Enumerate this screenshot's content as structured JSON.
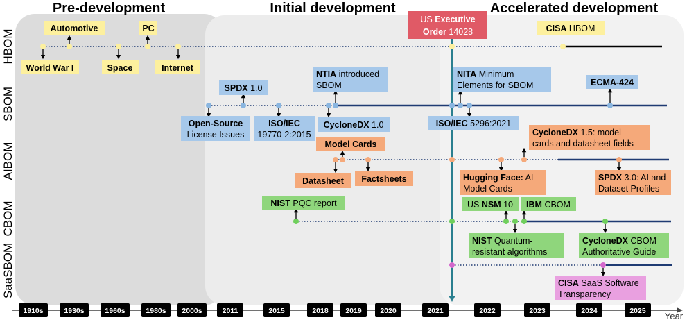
{
  "phases": {
    "pre": "Pre-development",
    "initial": "Initial development",
    "accelerated": "Accelerated development"
  },
  "rows": {
    "hbom": "HBOM",
    "sbom": "SBOM",
    "aibom": "AIBOM",
    "cbom": "CBOM",
    "saasbom": "SaaSBOM"
  },
  "axis": {
    "label": "Year",
    "ticks": [
      "1910s",
      "1930s",
      "1960s",
      "1980s",
      "2000s",
      "2011",
      "2015",
      "2018",
      "2019",
      "2020",
      "2021",
      "2022",
      "2023",
      "2024",
      "2025"
    ]
  },
  "colors": {
    "hbom": "#fdf09e",
    "sbom": "#a6c8ea",
    "sbom_dot": "#8ab6e0",
    "aibom": "#f5a97a",
    "cbom": "#8fd67c",
    "cbom_dot": "#6fcf5c",
    "saasbom": "#e9a0e0",
    "saasbom_dot": "#d468cc",
    "exec_order": "#e05a66",
    "line": "#1f3b73",
    "vertical": "#2a7f8f"
  },
  "events": {
    "exec_order": {
      "l1a": "US ",
      "l1b": "Executive",
      "l2a": "Order",
      "l2b": " 14028"
    },
    "hbom": {
      "automotive": "Automotive",
      "pc": "PC",
      "world_war": "World War I",
      "space": "Space",
      "internet": "Internet",
      "cisa_b": "CISA",
      "cisa_r": " HBOM"
    },
    "sbom": {
      "spdx_b": "SPDX",
      "spdx_r": " 1.0",
      "ntia_b": "NTIA",
      "ntia_r1": " introduced",
      "ntia_r2": "SBOM",
      "nita_b": "NITA",
      "nita_r1": " Minimum",
      "nita_r2": "Elements for SBOM",
      "ecma": "ECMA-424",
      "os_b": "Open-Source",
      "os_r": "License Issues",
      "iso1_b": "ISO/IEC",
      "iso1_r": "19770-2:2015",
      "cdx_b": "CycloneDX",
      "cdx_r": " 1.0",
      "iso2_b": "ISO/IEC",
      "iso2_r": " 5296:2021"
    },
    "aibom": {
      "model_cards": "Model Cards",
      "cdx15_b": "CycloneDX",
      "cdx15_r1": " 1.5: model",
      "cdx15_r2": "cards and datasheet fields",
      "datasheet": "Datasheet",
      "factsheets": "Factsheets",
      "hf_b": "Hugging Face:",
      "hf_r1": " AI",
      "hf_r2": "Model Cards",
      "spdx3_b": "SPDX",
      "spdx3_r1": " 3.0: AI and",
      "spdx3_r2": "Dataset Profiles"
    },
    "cbom": {
      "nist_pqc_b": "NIST",
      "nist_pqc_r": " PQC report",
      "nsm_a": "US ",
      "nsm_b": "NSM",
      "nsm_c": " 10",
      "ibm_b": "IBM",
      "ibm_r": " CBOM",
      "nist_q_b": "NIST",
      "nist_q_r1": " Quantum-",
      "nist_q_r2": "resistant algorithms",
      "cdx_cbom_b": "CycloneDX",
      "cdx_cbom_r1": " CBOM",
      "cdx_cbom_r2": "Authoritative Guide"
    },
    "saasbom": {
      "cisa_b": "CISA",
      "cisa_r1": " SaaS Software",
      "cisa_r2": "Transparency"
    }
  }
}
